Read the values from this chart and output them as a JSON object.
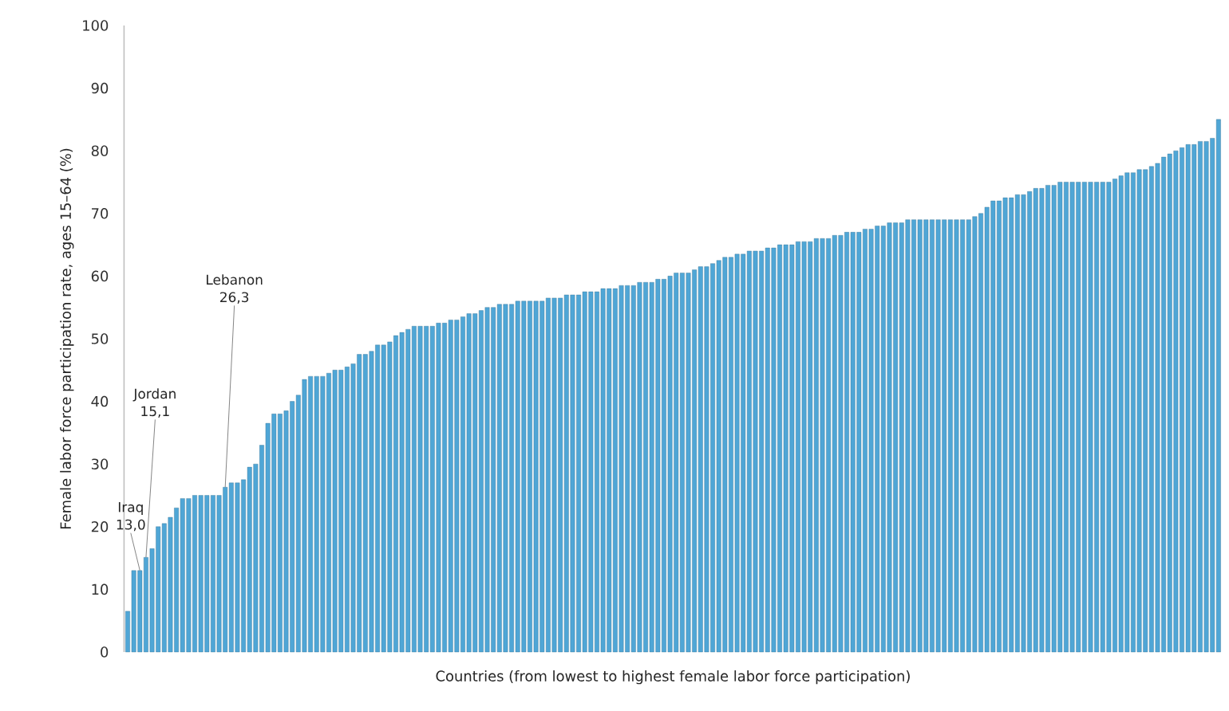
{
  "chart_data": {
    "type": "bar",
    "xlabel": "Countries (from lowest to highest female labor force participation)",
    "ylabel": "Female labor force participation rate, ages 15–64 (%)",
    "annotations": [
      "Iraq",
      "Jordan",
      "Lebanon"
    ],
    "categories": [
      null,
      null,
      null,
      null,
      null,
      null,
      null,
      null,
      null,
      null,
      null,
      null,
      null,
      null,
      null,
      null,
      null,
      null,
      null,
      null,
      null,
      null,
      null,
      null,
      null,
      null,
      null,
      null,
      null,
      null,
      null,
      null,
      null,
      null,
      null,
      null,
      null,
      null,
      null,
      null,
      null,
      null,
      null,
      null,
      null,
      null,
      null,
      null,
      null,
      null,
      null,
      null,
      null,
      null,
      null,
      null,
      null,
      null,
      null,
      null,
      null,
      null,
      null,
      null,
      null,
      null,
      null,
      null,
      null,
      null,
      null,
      null,
      null,
      null,
      null,
      null,
      null,
      null,
      null,
      null,
      null,
      null,
      null,
      null,
      null,
      null,
      null,
      null,
      null,
      null,
      null,
      null,
      null,
      null,
      null,
      null,
      null,
      null,
      null,
      null,
      null,
      null,
      null,
      null,
      null,
      null,
      null,
      null,
      null,
      null,
      null,
      null,
      null,
      null,
      null,
      null,
      null,
      null,
      null,
      null,
      null,
      null,
      null,
      null,
      null,
      null,
      null,
      null,
      null,
      null,
      null,
      null,
      null,
      null,
      null,
      null,
      null,
      null,
      null,
      null,
      null,
      null,
      null,
      null,
      null,
      null,
      null,
      null,
      null,
      null,
      null,
      null,
      null,
      null,
      null,
      null,
      null,
      null,
      null,
      null,
      null,
      null,
      null,
      null,
      null,
      null,
      null,
      null,
      null,
      null,
      null,
      null,
      null,
      null,
      null,
      null,
      null,
      null,
      null,
      null
    ],
    "values": [
      6.5,
      13,
      13.0,
      15.1,
      16.5,
      20,
      20.5,
      21.5,
      23,
      24.5,
      24.5,
      25,
      25,
      25,
      25,
      25,
      26.3,
      27,
      27,
      27.5,
      29.5,
      30,
      33,
      36.5,
      38,
      38,
      38.5,
      40,
      41,
      43.5,
      44,
      44,
      44,
      44.5,
      45,
      45,
      45.5,
      46,
      47.5,
      47.5,
      48,
      49,
      49,
      49.5,
      50.5,
      51,
      51.5,
      52,
      52,
      52,
      52,
      52.5,
      52.5,
      53,
      53,
      53.5,
      54,
      54,
      54.5,
      55,
      55,
      55.5,
      55.5,
      55.5,
      56,
      56,
      56,
      56,
      56,
      56.5,
      56.5,
      56.5,
      57,
      57,
      57,
      57.5,
      57.5,
      57.5,
      58,
      58,
      58,
      58.5,
      58.5,
      58.5,
      59,
      59,
      59,
      59.5,
      59.5,
      60,
      60.5,
      60.5,
      60.5,
      61,
      61.5,
      61.5,
      62,
      62.5,
      63,
      63,
      63.5,
      63.5,
      64,
      64,
      64,
      64.5,
      64.5,
      65,
      65,
      65,
      65.5,
      65.5,
      65.5,
      66,
      66,
      66,
      66.5,
      66.5,
      67,
      67,
      67,
      67.5,
      67.5,
      68,
      68,
      68.5,
      68.5,
      68.5,
      69,
      69,
      69,
      69,
      69,
      69,
      69,
      69,
      69,
      69,
      69,
      69.5,
      70,
      71,
      72,
      72,
      72.5,
      72.5,
      73,
      73,
      73.5,
      74,
      74,
      74.5,
      74.5,
      75,
      75,
      75,
      75,
      75,
      75,
      75,
      75,
      75,
      75.5,
      76,
      76.5,
      76.5,
      77,
      77,
      77.5,
      78,
      79,
      79.5,
      80,
      80.5,
      81,
      81,
      81.5,
      81.5,
      82,
      85
    ],
    "value_labels": [
      null,
      null,
      "13,0",
      "15,1",
      null,
      null,
      null,
      null,
      null,
      null,
      null,
      null,
      null,
      null,
      null,
      null,
      "26,3",
      null,
      null,
      null,
      null,
      null,
      null,
      null,
      null,
      null,
      null,
      null,
      null,
      null,
      null,
      null,
      null,
      null,
      null,
      null,
      null,
      null,
      null,
      null,
      null,
      null,
      null,
      null,
      null,
      null,
      null,
      null,
      null,
      null,
      null,
      null,
      null,
      null,
      null,
      null,
      null,
      null,
      null,
      null,
      null,
      null,
      null,
      null,
      null,
      null,
      null,
      null,
      null,
      null,
      null,
      null,
      null,
      null,
      null,
      null,
      null,
      null,
      null,
      null,
      null,
      null,
      null,
      null,
      null,
      null,
      null,
      null,
      null,
      null,
      null,
      null,
      null,
      null,
      null,
      null,
      null,
      null,
      null,
      null,
      null,
      null,
      null,
      null,
      null,
      null,
      null,
      null,
      null,
      null,
      null,
      null,
      null,
      null,
      null,
      null,
      null,
      null,
      null,
      null,
      null,
      null,
      null,
      null,
      null,
      null,
      null,
      null,
      null,
      null,
      null,
      null,
      null,
      null,
      null,
      null,
      null,
      null,
      null,
      null,
      null,
      null,
      null,
      null,
      null,
      null,
      null,
      null,
      null,
      null,
      null,
      null,
      null,
      null,
      null,
      null,
      null,
      null,
      null,
      null,
      null,
      null,
      null,
      null,
      null,
      null,
      null,
      null,
      null,
      null,
      null,
      null,
      null,
      null,
      null,
      null,
      null,
      null,
      null,
      null
    ],
    "color": "#4fa6d6",
    "ylim": [
      0,
      100
    ],
    "yticks": [
      0,
      10,
      20,
      30,
      40,
      50,
      60,
      70,
      80,
      90,
      100
    ],
    "grid": false
  }
}
